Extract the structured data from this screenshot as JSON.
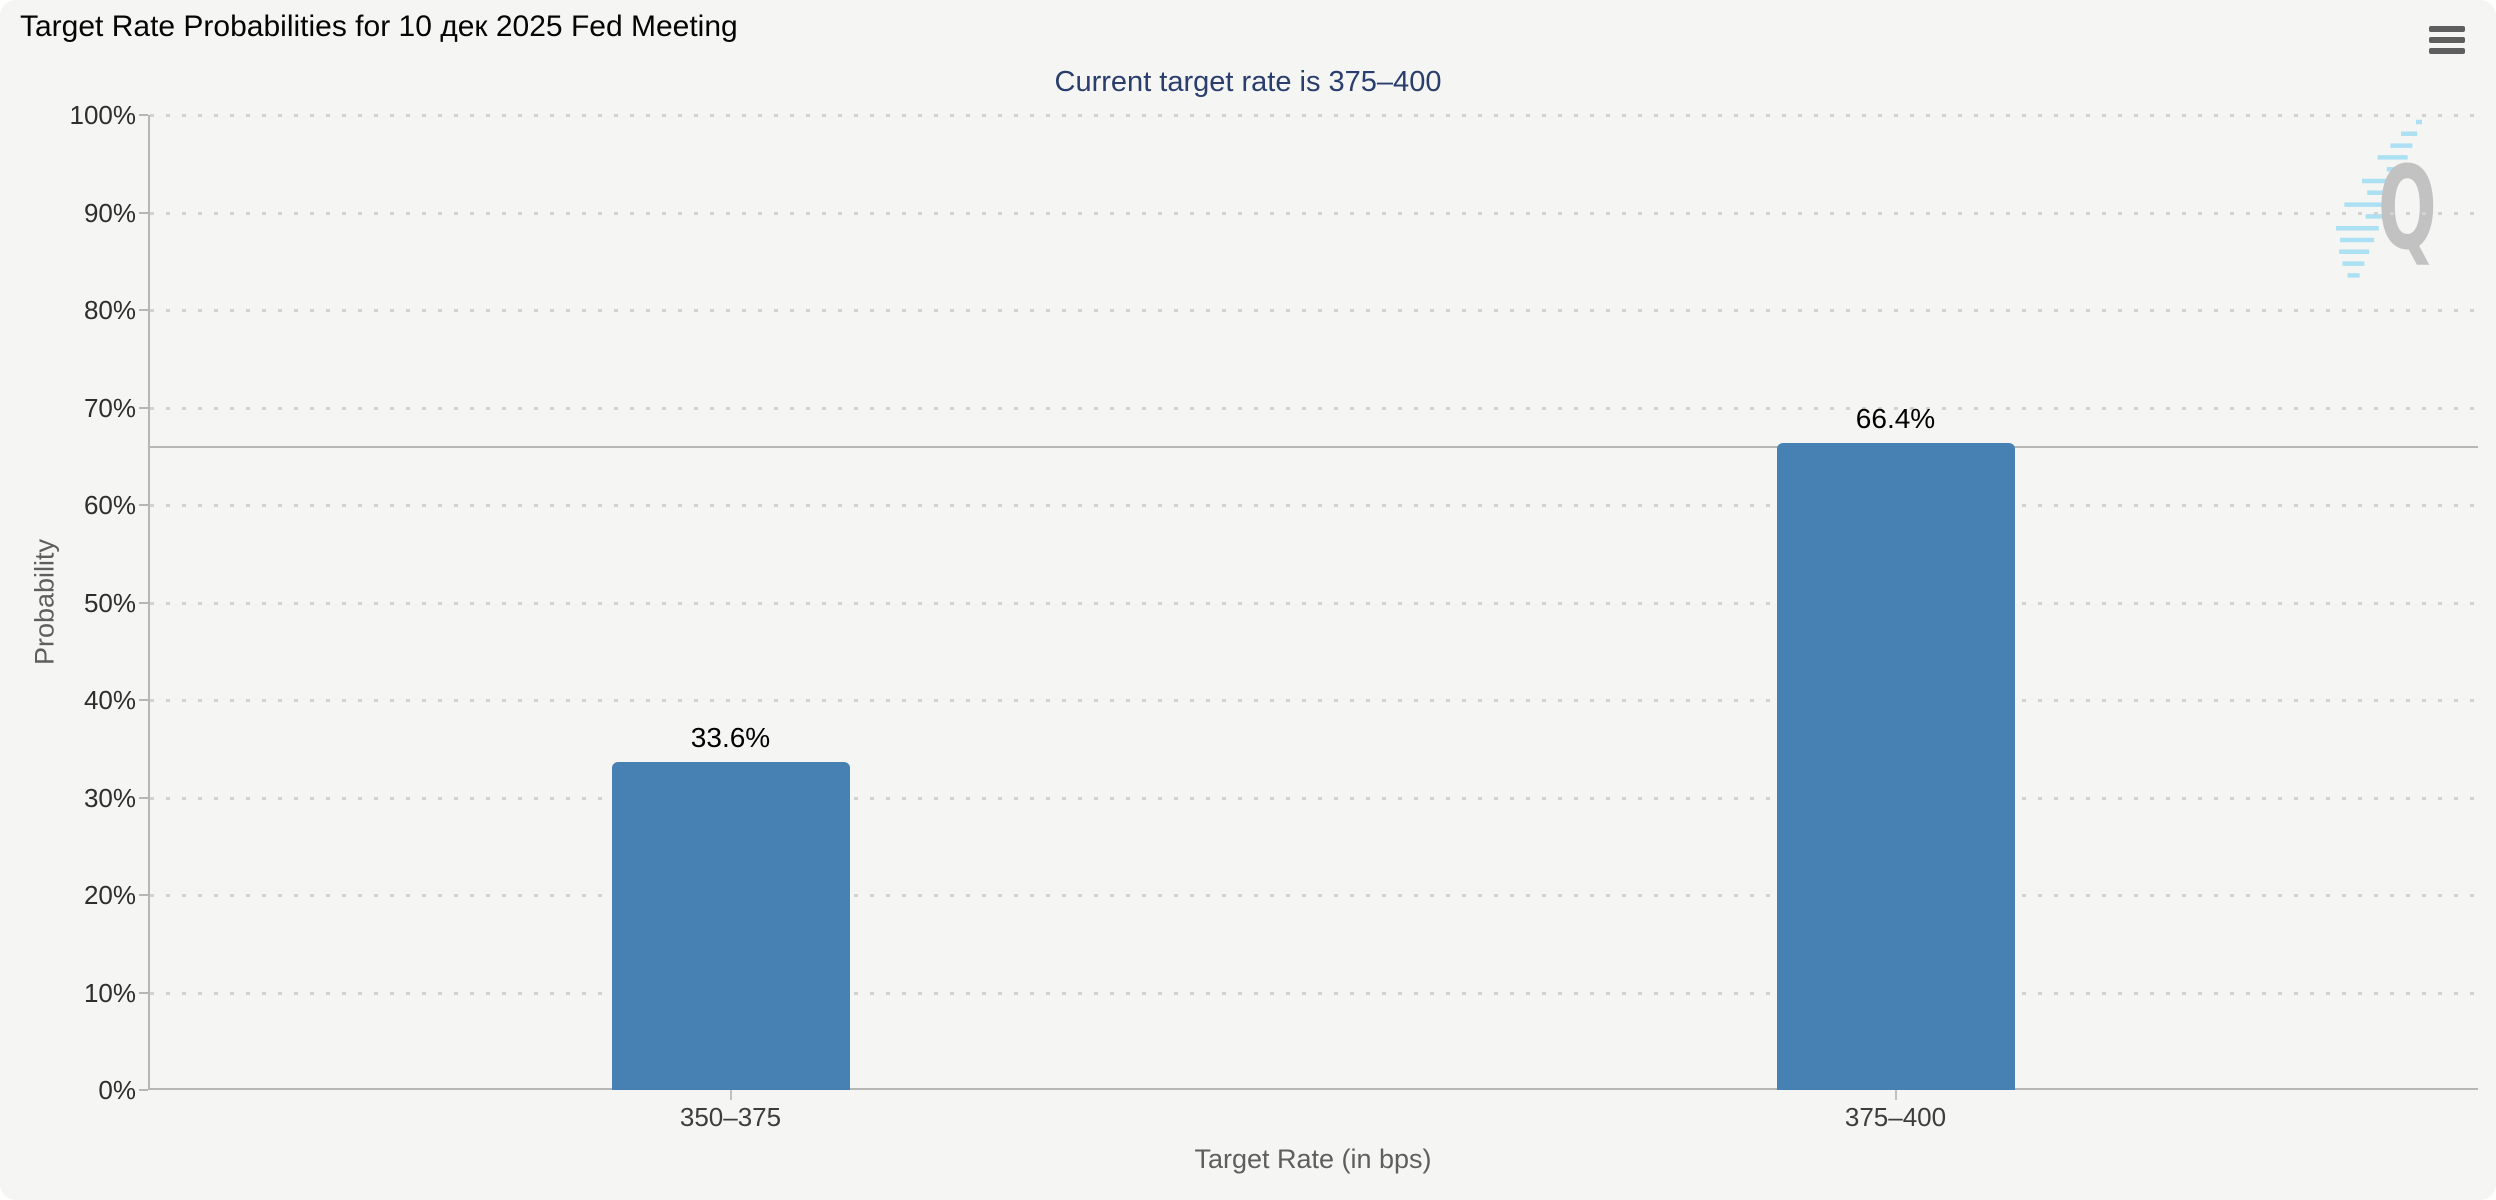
{
  "header": {
    "title": "Target Rate Probabilities for 10 дек 2025 Fed Meeting"
  },
  "subtitle": "Current target rate is 375–400",
  "watermark": {
    "letter": "Q"
  },
  "chart_data": {
    "type": "bar",
    "title": "Target Rate Probabilities for 10 дек 2025 Fed Meeting",
    "subtitle": "Current target rate is 375–400",
    "categories": [
      "350–375",
      "375–400"
    ],
    "values": [
      33.6,
      66.4
    ],
    "bar_labels": [
      "33.6%",
      "66.4%"
    ],
    "xlabel": "Target Rate (in bps)",
    "ylabel": "Probability",
    "ylim": [
      0,
      100
    ],
    "yticks": [
      0,
      10,
      20,
      30,
      40,
      50,
      60,
      70,
      80,
      90,
      100
    ],
    "ytick_labels": [
      "0%",
      "10%",
      "20%",
      "30%",
      "40%",
      "50%",
      "60%",
      "70%",
      "80%",
      "90%",
      "100%"
    ],
    "reference_line_value": 66,
    "grid": "horizontal-dotted",
    "legend": "none",
    "bar_color": "#4781b4",
    "subtitle_color": "#293e6c",
    "axis_color": "#b6b6b6"
  }
}
